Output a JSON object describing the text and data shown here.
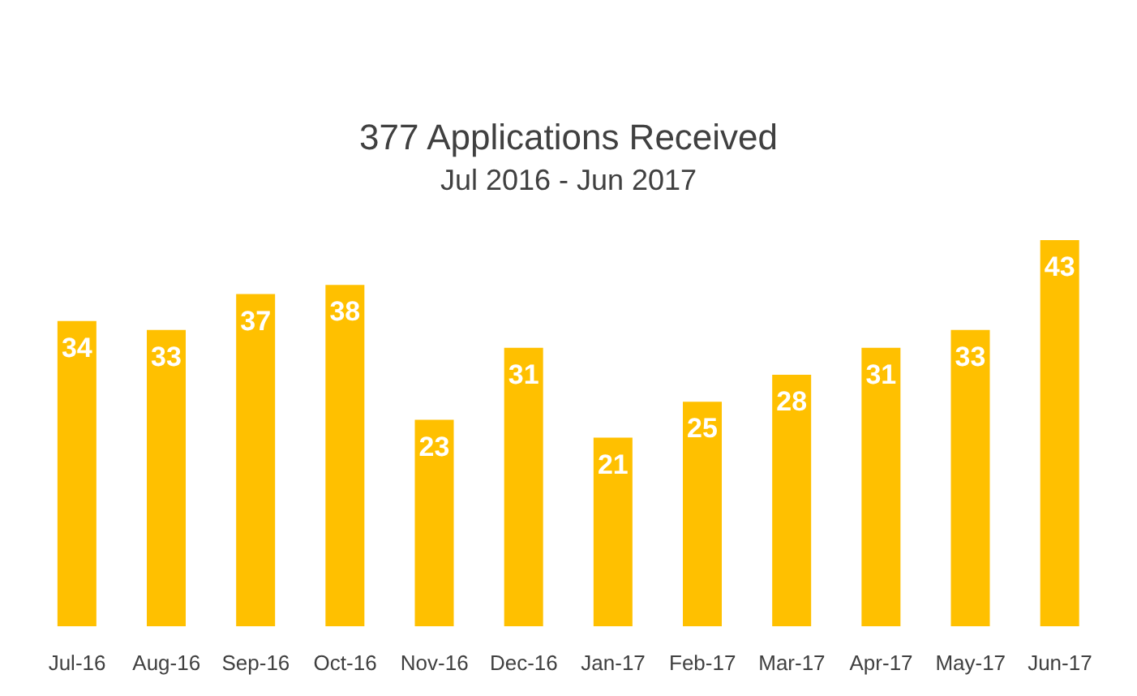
{
  "chart_data": {
    "type": "bar",
    "title": "377 Applications Received",
    "subtitle": "Jul 2016 - Jun 2017",
    "categories": [
      "Jul-16",
      "Aug-16",
      "Sep-16",
      "Oct-16",
      "Nov-16",
      "Dec-16",
      "Jan-17",
      "Feb-17",
      "Mar-17",
      "Apr-17",
      "May-17",
      "Jun-17"
    ],
    "values": [
      34,
      33,
      37,
      38,
      23,
      31,
      21,
      25,
      28,
      31,
      33,
      43
    ],
    "color": "#ffc000",
    "data_labels": true,
    "grid": false,
    "legend": false
  }
}
